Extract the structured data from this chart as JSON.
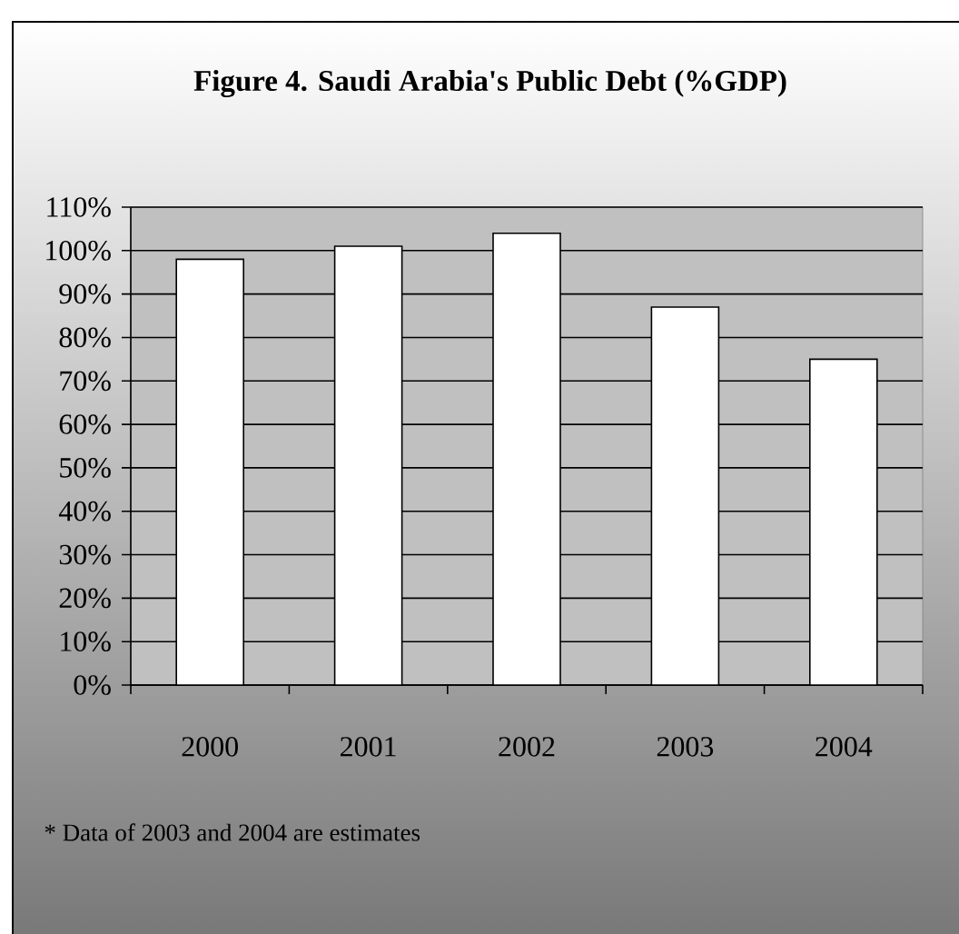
{
  "chart_data": {
    "type": "bar",
    "title": "Figure 4. Saudi Arabia's Public Debt (%GDP)",
    "categories": [
      "2000",
      "2001",
      "2002",
      "2003",
      "2004"
    ],
    "values": [
      98,
      101,
      104,
      87,
      75
    ],
    "color": "#ffffff",
    "ylim": [
      0,
      110
    ],
    "yticks": [
      {
        "value": 0,
        "label": "0%"
      },
      {
        "value": 10,
        "label": "10%"
      },
      {
        "value": 20,
        "label": "20%"
      },
      {
        "value": 30,
        "label": "30%"
      },
      {
        "value": 40,
        "label": "40%"
      },
      {
        "value": 50,
        "label": "50%"
      },
      {
        "value": 60,
        "label": "60%"
      },
      {
        "value": 70,
        "label": "70%"
      },
      {
        "value": 80,
        "label": "80%"
      },
      {
        "value": 90,
        "label": "90%"
      },
      {
        "value": 100,
        "label": "100%"
      },
      {
        "value": 110,
        "label": "110%"
      }
    ],
    "grid": "y",
    "annotations": [
      "* Data of 2003 and 2004 are estimates"
    ]
  }
}
